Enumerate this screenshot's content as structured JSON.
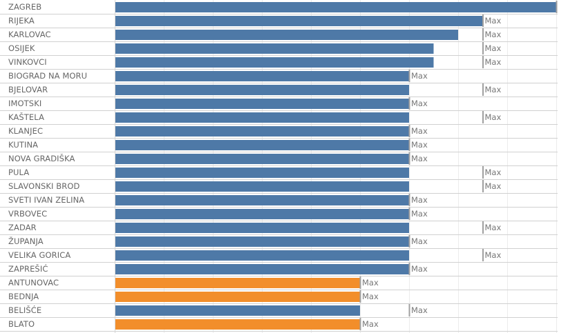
{
  "chart_data": {
    "type": "bar",
    "orientation": "horizontal",
    "title": "",
    "xlabel": "",
    "ylabel": "",
    "xlim": [
      0,
      9
    ],
    "grid": true,
    "legend": "none",
    "colors": {
      "default": "#4e79a7",
      "highlight": "#f28e2b",
      "reference_line": "#a0a0a0",
      "row_divider": "#d0d0d0",
      "gridline": "#ececec"
    },
    "reference_label": "Max",
    "categories": [
      "ZAGREB",
      "RIJEKA",
      "KARLOVAC",
      "OSIJEK",
      "VINKOVCI",
      "BIOGRAD NA MORU",
      "BJELOVAR",
      "IMOTSKI",
      "KAŠTELA",
      "KLANJEC",
      "KUTINA",
      "NOVA GRADIŠKA",
      "PULA",
      "SLAVONSKI BROD",
      "SVETI IVAN ZELINA",
      "VRBOVEC",
      "ZADAR",
      "ŽUPANJA",
      "VELIKA GORICA",
      "ZAPREŠIĆ",
      "ANTUNOVAC",
      "BEDNJA",
      "BELIŠĆE",
      "BLATO"
    ],
    "values": [
      9,
      7.5,
      7,
      6.5,
      6.5,
      6,
      6,
      6,
      6,
      6,
      6,
      6,
      6,
      6,
      6,
      6,
      6,
      6,
      6,
      6,
      5,
      5,
      5,
      5
    ],
    "reference_max": [
      9,
      7.5,
      7.5,
      7.5,
      7.5,
      6,
      7.5,
      6,
      7.5,
      6,
      6,
      6,
      7.5,
      7.5,
      6,
      6,
      7.5,
      6,
      7.5,
      6,
      5,
      5,
      6,
      5
    ],
    "highlight": [
      false,
      false,
      false,
      false,
      false,
      false,
      false,
      false,
      false,
      false,
      false,
      false,
      false,
      false,
      false,
      false,
      false,
      false,
      false,
      false,
      true,
      true,
      false,
      true
    ]
  }
}
